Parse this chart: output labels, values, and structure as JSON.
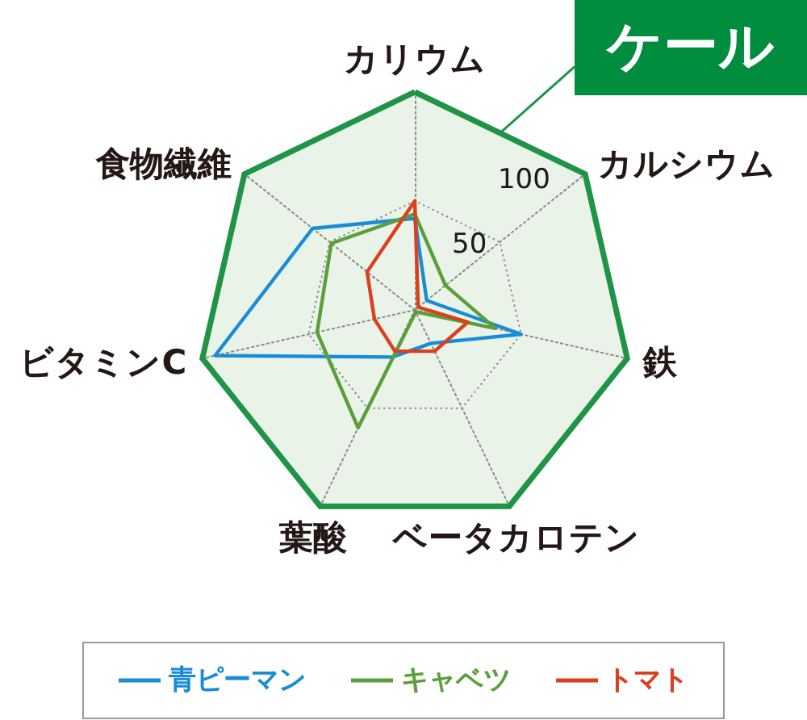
{
  "chart_data": {
    "type": "radar",
    "title": "ケール",
    "categories": [
      "カリウム",
      "カルシウム",
      "鉄",
      "ベータカロテン",
      "葉酸",
      "ビタミンC",
      "食物繊維"
    ],
    "series": [
      {
        "name": "青ピーマン",
        "color": "#1a8cd6",
        "values": [
          42,
          7,
          50,
          17,
          24,
          94,
          60
        ]
      },
      {
        "name": "キャベツ",
        "color": "#5b9e3c",
        "values": [
          44,
          18,
          38,
          1,
          60,
          46,
          49
        ]
      },
      {
        "name": "トマト",
        "color": "#d9401f",
        "values": [
          50,
          2,
          25,
          21,
          21,
          19,
          28
        ]
      }
    ],
    "ylim": [
      0,
      100
    ],
    "yticks": [
      50,
      100
    ],
    "grid": true,
    "legend": "bottom",
    "marker": "none"
  }
}
